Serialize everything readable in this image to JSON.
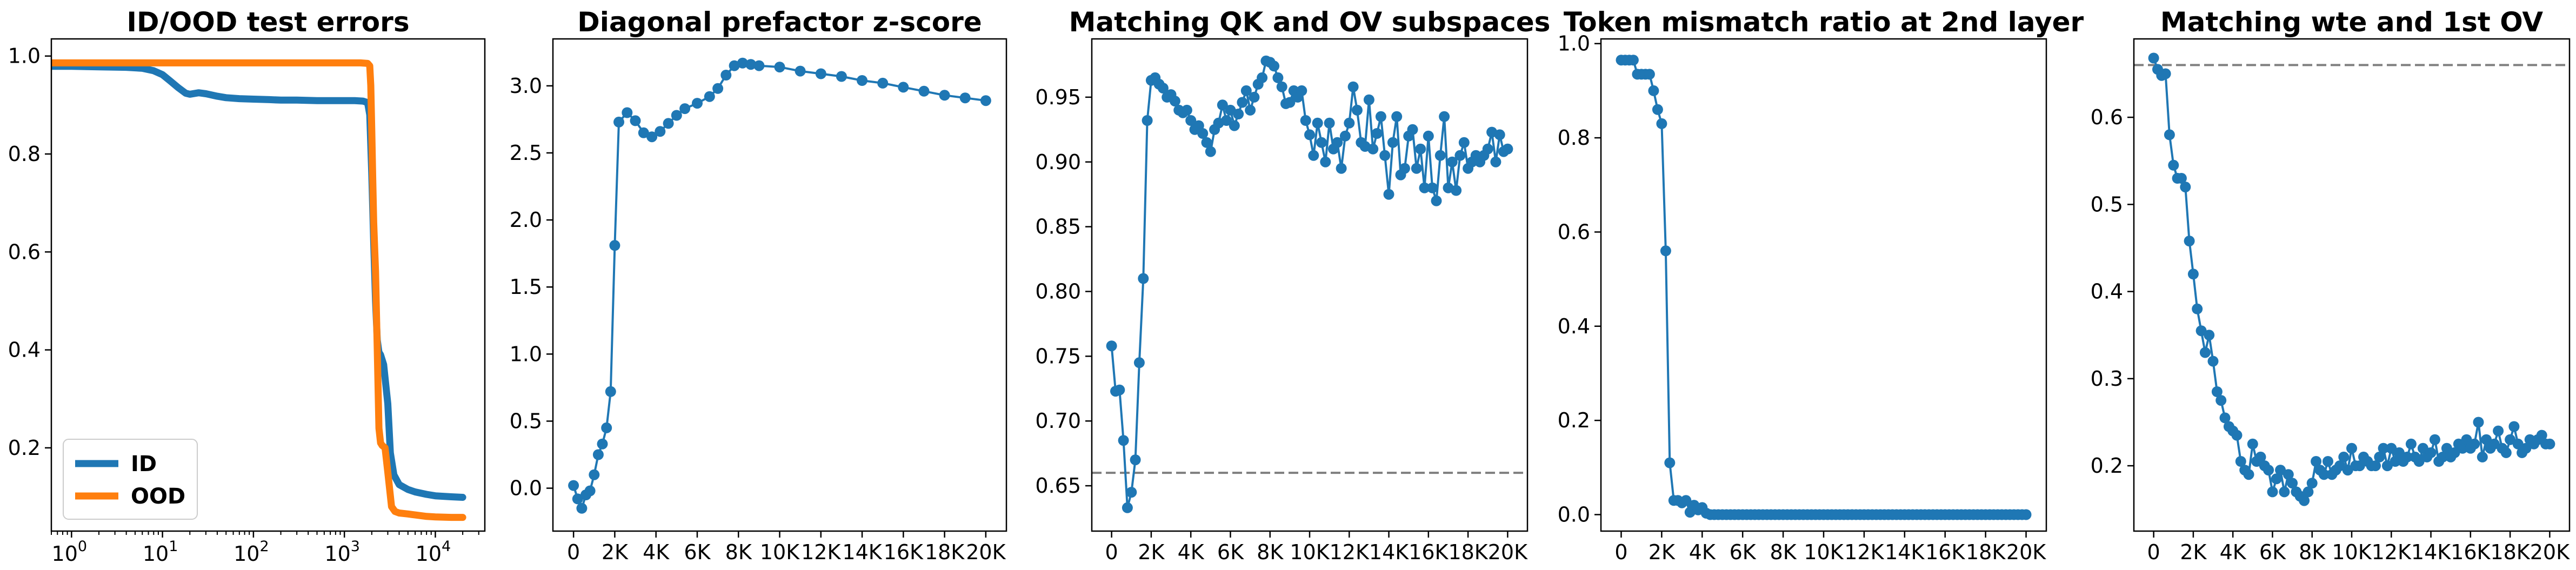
{
  "chart_data": [
    {
      "type": "line",
      "title": "ID/OOD test errors",
      "xscale": "log",
      "xlim": [
        0.6,
        35000
      ],
      "ylim": [
        0.03,
        1.035
      ],
      "xticks": [
        1,
        10,
        100,
        1000,
        10000
      ],
      "xtick_labels": [
        [
          "10",
          "0"
        ],
        [
          "10",
          "1"
        ],
        [
          "10",
          "2"
        ],
        [
          "10",
          "3"
        ],
        [
          "10",
          "4"
        ]
      ],
      "yticks": [
        0.2,
        0.4,
        0.6,
        0.8,
        1.0
      ],
      "ytick_labels": [
        "0.2",
        "0.4",
        "0.6",
        "0.8",
        "1.0"
      ],
      "legend": "lower-left",
      "series": [
        {
          "name": "ID",
          "color": "#1f77b4",
          "x": [
            0.6,
            1,
            2,
            4,
            6,
            8,
            10,
            12,
            15,
            18,
            20,
            25,
            30,
            40,
            50,
            70,
            100,
            150,
            200,
            300,
            500,
            700,
            1000,
            1300,
            1600,
            1800,
            1900,
            2000,
            2100,
            2200,
            2300,
            2400,
            2500,
            2700,
            3000,
            3200,
            3500,
            4000,
            5000,
            6000,
            8000,
            10000,
            15000,
            20000
          ],
          "y": [
            0.979,
            0.979,
            0.978,
            0.977,
            0.975,
            0.97,
            0.962,
            0.95,
            0.935,
            0.924,
            0.922,
            0.925,
            0.923,
            0.918,
            0.915,
            0.913,
            0.912,
            0.911,
            0.91,
            0.91,
            0.909,
            0.909,
            0.909,
            0.909,
            0.908,
            0.905,
            0.88,
            0.76,
            0.62,
            0.5,
            0.42,
            0.395,
            0.39,
            0.37,
            0.29,
            0.19,
            0.145,
            0.125,
            0.115,
            0.11,
            0.105,
            0.102,
            0.1,
            0.099
          ]
        },
        {
          "name": "OOD",
          "color": "#ff7f0e",
          "x": [
            0.6,
            1,
            10,
            100,
            1000,
            1500,
            1800,
            1900,
            1950,
            2000,
            2050,
            2100,
            2150,
            2200,
            2300,
            2400,
            2500,
            2600,
            2800,
            3000,
            3300,
            3600,
            4000,
            5000,
            6000,
            8000,
            10000,
            15000,
            20000
          ],
          "y": [
            0.986,
            0.986,
            0.986,
            0.986,
            0.986,
            0.986,
            0.985,
            0.98,
            0.94,
            0.85,
            0.75,
            0.66,
            0.61,
            0.56,
            0.4,
            0.24,
            0.21,
            0.205,
            0.2,
            0.15,
            0.08,
            0.07,
            0.067,
            0.065,
            0.063,
            0.06,
            0.059,
            0.058,
            0.058
          ]
        }
      ]
    },
    {
      "type": "line",
      "title": "Diagonal prefactor z-score",
      "xlim": [
        -1000,
        21000
      ],
      "ylim": [
        -0.32,
        3.35
      ],
      "xticks": [
        0,
        2000,
        4000,
        6000,
        8000,
        10000,
        12000,
        14000,
        16000,
        18000,
        20000
      ],
      "xtick_labels": [
        "0",
        "2K",
        "4K",
        "6K",
        "8K",
        "10K",
        "12K",
        "14K",
        "16K",
        "18K",
        "20K"
      ],
      "yticks": [
        0.0,
        0.5,
        1.0,
        1.5,
        2.0,
        2.5,
        3.0
      ],
      "ytick_labels": [
        "0.0",
        "0.5",
        "1.0",
        "1.5",
        "2.0",
        "2.5",
        "3.0"
      ],
      "series": [
        {
          "color": "#1f77b4",
          "x": [
            0,
            200,
            400,
            600,
            800,
            1000,
            1200,
            1400,
            1600,
            1800,
            2000,
            2200,
            2600,
            3000,
            3400,
            3800,
            4200,
            4600,
            5000,
            5400,
            6000,
            6600,
            7000,
            7400,
            7800,
            8200,
            8600,
            9000,
            10000,
            11000,
            12000,
            13000,
            14000,
            15000,
            16000,
            17000,
            18000,
            19000,
            20000
          ],
          "y": [
            0.02,
            -0.08,
            -0.15,
            -0.05,
            -0.02,
            0.1,
            0.25,
            0.33,
            0.45,
            0.72,
            1.81,
            2.73,
            2.8,
            2.74,
            2.65,
            2.62,
            2.66,
            2.72,
            2.78,
            2.83,
            2.87,
            2.92,
            2.98,
            3.08,
            3.15,
            3.17,
            3.16,
            3.15,
            3.14,
            3.11,
            3.09,
            3.07,
            3.04,
            3.02,
            2.99,
            2.96,
            2.93,
            2.91,
            2.89
          ]
        }
      ]
    },
    {
      "type": "line",
      "title": "Matching QK and OV subspaces",
      "xlim": [
        -1000,
        21000
      ],
      "ylim": [
        0.615,
        0.995
      ],
      "xticks": [
        0,
        2000,
        4000,
        6000,
        8000,
        10000,
        12000,
        14000,
        16000,
        18000,
        20000
      ],
      "xtick_labels": [
        "0",
        "2K",
        "4K",
        "6K",
        "8K",
        "10K",
        "12K",
        "14K",
        "16K",
        "18K",
        "20K"
      ],
      "yticks": [
        0.65,
        0.7,
        0.75,
        0.8,
        0.85,
        0.9,
        0.95
      ],
      "ytick_labels": [
        "0.65",
        "0.70",
        "0.75",
        "0.80",
        "0.85",
        "0.90",
        "0.95"
      ],
      "hline": 0.66,
      "series": [
        {
          "color": "#1f77b4",
          "x": [
            0,
            200,
            400,
            600,
            800,
            1000,
            1200,
            1400,
            1600,
            1800,
            2000,
            2200,
            2400,
            2600,
            2800,
            3000,
            3200,
            3400,
            3600,
            3800,
            4000,
            4200,
            4400,
            4600,
            4800,
            5000,
            5200,
            5400,
            5600,
            5800,
            6000,
            6200,
            6400,
            6600,
            6800,
            7000,
            7200,
            7400,
            7600,
            7800,
            8000,
            8200,
            8400,
            8600,
            8800,
            9000,
            9200,
            9400,
            9600,
            9800,
            10000,
            10200,
            10400,
            10600,
            10800,
            11000,
            11200,
            11400,
            11600,
            11800,
            12000,
            12200,
            12400,
            12600,
            12800,
            13000,
            13200,
            13400,
            13600,
            13800,
            14000,
            14200,
            14400,
            14600,
            14800,
            15000,
            15200,
            15400,
            15600,
            15800,
            16000,
            16200,
            16400,
            16600,
            16800,
            17000,
            17200,
            17400,
            17600,
            17800,
            18000,
            18200,
            18400,
            18600,
            18800,
            19000,
            19200,
            19400,
            19600,
            19800,
            20000
          ],
          "y": [
            0.758,
            0.723,
            0.724,
            0.685,
            0.633,
            0.645,
            0.67,
            0.745,
            0.81,
            0.932,
            0.963,
            0.965,
            0.96,
            0.957,
            0.95,
            0.952,
            0.947,
            0.94,
            0.938,
            0.94,
            0.932,
            0.925,
            0.928,
            0.922,
            0.915,
            0.908,
            0.925,
            0.93,
            0.944,
            0.932,
            0.94,
            0.928,
            0.937,
            0.946,
            0.955,
            0.94,
            0.95,
            0.96,
            0.965,
            0.978,
            0.977,
            0.974,
            0.965,
            0.958,
            0.945,
            0.946,
            0.955,
            0.95,
            0.955,
            0.932,
            0.921,
            0.905,
            0.93,
            0.915,
            0.9,
            0.93,
            0.91,
            0.915,
            0.895,
            0.92,
            0.93,
            0.958,
            0.94,
            0.915,
            0.912,
            0.948,
            0.91,
            0.922,
            0.935,
            0.905,
            0.875,
            0.915,
            0.935,
            0.89,
            0.895,
            0.92,
            0.925,
            0.895,
            0.91,
            0.88,
            0.92,
            0.88,
            0.87,
            0.905,
            0.935,
            0.88,
            0.9,
            0.878,
            0.905,
            0.915,
            0.895,
            0.9,
            0.905,
            0.9,
            0.905,
            0.91,
            0.923,
            0.9,
            0.921,
            0.908,
            0.91
          ]
        }
      ]
    },
    {
      "type": "line",
      "title": "Token mismatch ratio at 2nd layer",
      "xlim": [
        -1000,
        21000
      ],
      "ylim": [
        -0.035,
        1.01
      ],
      "xticks": [
        0,
        2000,
        4000,
        6000,
        8000,
        10000,
        12000,
        14000,
        16000,
        18000,
        20000
      ],
      "xtick_labels": [
        "0",
        "2K",
        "4K",
        "6K",
        "8K",
        "10K",
        "12K",
        "14K",
        "16K",
        "18K",
        "20K"
      ],
      "yticks": [
        0.0,
        0.2,
        0.4,
        0.6,
        0.8,
        1.0
      ],
      "ytick_labels": [
        "0.0",
        "0.2",
        "0.4",
        "0.6",
        "0.8",
        "1.0"
      ],
      "series": [
        {
          "color": "#1f77b4",
          "x": [
            0,
            200,
            400,
            600,
            800,
            1000,
            1200,
            1400,
            1600,
            1800,
            2000,
            2200,
            2400,
            2600,
            2800,
            3000,
            3200,
            3400,
            3600,
            3800,
            4000,
            4200,
            4400,
            4600,
            4800,
            5000,
            5200,
            5400,
            5600,
            5800,
            6000,
            6200,
            6400,
            6600,
            6800,
            7000,
            7200,
            7400,
            7600,
            7800,
            8000,
            8200,
            8400,
            8600,
            8800,
            9000,
            9200,
            9400,
            9600,
            9800,
            10000,
            10200,
            10400,
            10600,
            10800,
            11000,
            11200,
            11400,
            11600,
            11800,
            12000,
            12200,
            12400,
            12600,
            12800,
            13000,
            13200,
            13400,
            13600,
            13800,
            14000,
            14200,
            14400,
            14600,
            14800,
            15000,
            15200,
            15400,
            15600,
            15800,
            16000,
            16200,
            16400,
            16600,
            16800,
            17000,
            17200,
            17400,
            17600,
            17800,
            18000,
            18200,
            18400,
            18600,
            18800,
            19000,
            19200,
            19400,
            19600,
            19800,
            20000
          ],
          "y": [
            0.965,
            0.965,
            0.965,
            0.965,
            0.935,
            0.935,
            0.935,
            0.935,
            0.9,
            0.86,
            0.83,
            0.56,
            0.11,
            0.03,
            0.03,
            0.025,
            0.03,
            0.005,
            0.02,
            0.01,
            0.015,
            0.003,
            0,
            0,
            0,
            0,
            0,
            0,
            0,
            0,
            0,
            0,
            0,
            0,
            0,
            0,
            0,
            0,
            0,
            0,
            0,
            0,
            0,
            0,
            0,
            0,
            0,
            0,
            0,
            0,
            0,
            0,
            0,
            0,
            0,
            0,
            0,
            0,
            0,
            0,
            0,
            0,
            0,
            0,
            0,
            0,
            0,
            0,
            0,
            0,
            0,
            0,
            0,
            0,
            0,
            0,
            0,
            0,
            0,
            0,
            0,
            0,
            0,
            0,
            0,
            0,
            0,
            0,
            0,
            0,
            0,
            0,
            0,
            0,
            0,
            0,
            0,
            0,
            0,
            0,
            0
          ]
        }
      ]
    },
    {
      "type": "line",
      "title": "Matching wte and 1st OV",
      "xlim": [
        -1000,
        21000
      ],
      "ylim": [
        0.125,
        0.69
      ],
      "xticks": [
        0,
        2000,
        4000,
        6000,
        8000,
        10000,
        12000,
        14000,
        16000,
        18000,
        20000
      ],
      "xtick_labels": [
        "0",
        "2K",
        "4K",
        "6K",
        "8K",
        "10K",
        "12K",
        "14K",
        "16K",
        "18K",
        "20K"
      ],
      "yticks": [
        0.2,
        0.3,
        0.4,
        0.5,
        0.6
      ],
      "ytick_labels": [
        "0.2",
        "0.3",
        "0.4",
        "0.5",
        "0.6"
      ],
      "hline": 0.66,
      "series": [
        {
          "color": "#1f77b4",
          "x": [
            0,
            200,
            400,
            600,
            800,
            1000,
            1200,
            1400,
            1600,
            1800,
            2000,
            2200,
            2400,
            2600,
            2800,
            3000,
            3200,
            3400,
            3600,
            3800,
            4000,
            4200,
            4400,
            4600,
            4800,
            5000,
            5200,
            5400,
            5600,
            5800,
            6000,
            6200,
            6400,
            6600,
            6800,
            7000,
            7200,
            7400,
            7600,
            7800,
            8000,
            8200,
            8400,
            8600,
            8800,
            9000,
            9200,
            9400,
            9600,
            9800,
            10000,
            10200,
            10400,
            10600,
            10800,
            11000,
            11200,
            11400,
            11600,
            11800,
            12000,
            12200,
            12400,
            12600,
            12800,
            13000,
            13200,
            13400,
            13600,
            13800,
            14000,
            14200,
            14400,
            14600,
            14800,
            15000,
            15200,
            15400,
            15600,
            15800,
            16000,
            16200,
            16400,
            16600,
            16800,
            17000,
            17200,
            17400,
            17600,
            17800,
            18000,
            18200,
            18400,
            18600,
            18800,
            19000,
            19200,
            19400,
            19600,
            19800,
            20000
          ],
          "y": [
            0.668,
            0.655,
            0.648,
            0.65,
            0.58,
            0.545,
            0.53,
            0.53,
            0.52,
            0.458,
            0.42,
            0.38,
            0.355,
            0.33,
            0.35,
            0.32,
            0.285,
            0.275,
            0.255,
            0.245,
            0.24,
            0.235,
            0.205,
            0.195,
            0.19,
            0.225,
            0.205,
            0.21,
            0.2,
            0.195,
            0.17,
            0.185,
            0.195,
            0.17,
            0.19,
            0.18,
            0.17,
            0.165,
            0.16,
            0.17,
            0.18,
            0.205,
            0.195,
            0.19,
            0.205,
            0.19,
            0.195,
            0.2,
            0.21,
            0.195,
            0.22,
            0.2,
            0.2,
            0.21,
            0.205,
            0.2,
            0.2,
            0.21,
            0.22,
            0.2,
            0.22,
            0.205,
            0.215,
            0.205,
            0.21,
            0.225,
            0.21,
            0.205,
            0.22,
            0.21,
            0.215,
            0.23,
            0.205,
            0.21,
            0.22,
            0.21,
            0.215,
            0.225,
            0.22,
            0.23,
            0.22,
            0.225,
            0.25,
            0.21,
            0.23,
            0.22,
            0.225,
            0.24,
            0.22,
            0.215,
            0.23,
            0.245,
            0.225,
            0.215,
            0.22,
            0.23,
            0.225,
            0.23,
            0.235,
            0.225,
            0.225
          ]
        }
      ]
    }
  ]
}
